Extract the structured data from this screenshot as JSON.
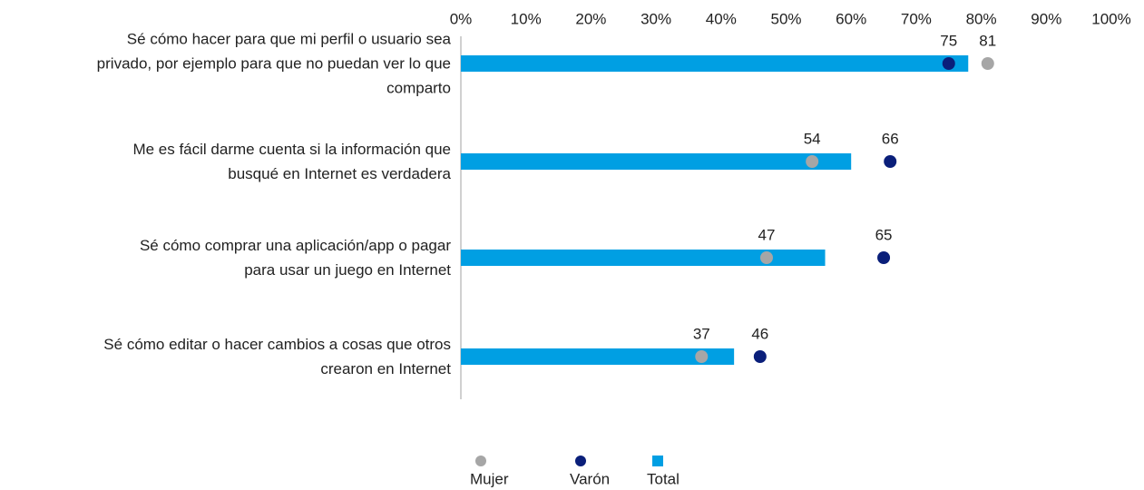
{
  "chart_data": {
    "type": "bar-dot",
    "categories": [
      "Sé cómo hacer para que mi perfil o usuario sea\nprivado, por ejemplo para que no puedan ver lo que\ncomparto",
      "Me es fácil darme cuenta si la información que\nbusqué en Internet es verdadera",
      "Sé cómo comprar una aplicación/app o pagar\npara usar un juego en Internet",
      "Sé cómo editar o hacer cambios a cosas que otros\ncrearon en Internet"
    ],
    "series": [
      {
        "name": "Mujer",
        "type": "dot",
        "color": "#a6a6a6",
        "labels": true,
        "values": [
          81,
          54,
          47,
          37
        ]
      },
      {
        "name": "Varón",
        "type": "dot",
        "color": "#0a1f7a",
        "labels": true,
        "values": [
          75,
          66,
          65,
          46
        ]
      },
      {
        "name": "Total",
        "type": "bar",
        "color": "#009fe3",
        "labels": false,
        "values": [
          78,
          60,
          56,
          42
        ]
      }
    ],
    "xlim": [
      0,
      100
    ],
    "xticks": [
      {
        "value": 0,
        "label": "0%"
      },
      {
        "value": 10,
        "label": "10%"
      },
      {
        "value": 20,
        "label": "20%"
      },
      {
        "value": 30,
        "label": "30%"
      },
      {
        "value": 40,
        "label": "40%"
      },
      {
        "value": 50,
        "label": "50%"
      },
      {
        "value": 60,
        "label": "60%"
      },
      {
        "value": 70,
        "label": "70%"
      },
      {
        "value": 80,
        "label": "80%"
      },
      {
        "value": 90,
        "label": "90%"
      },
      {
        "value": 100,
        "label": "100%"
      }
    ],
    "grid": false,
    "legend": "bottom"
  }
}
